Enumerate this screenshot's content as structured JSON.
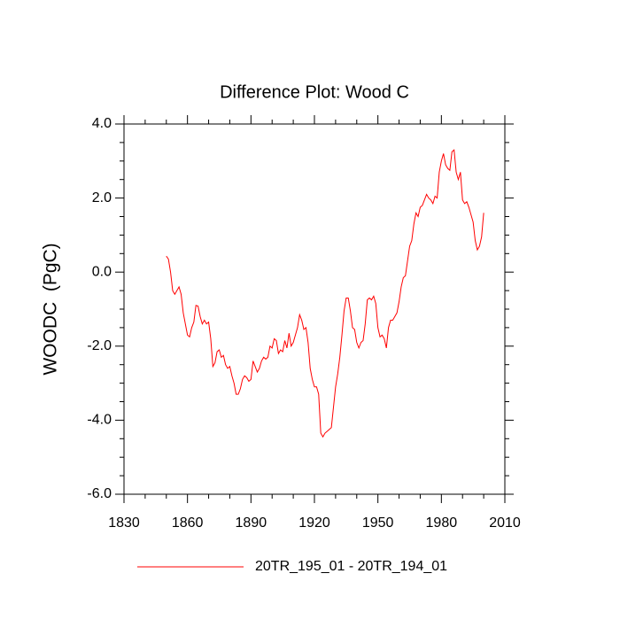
{
  "chart_data": {
    "type": "line",
    "title": "Difference Plot: Wood C",
    "y_label": "WOODC  (PgC)",
    "x": [
      1850,
      1851,
      1852,
      1853,
      1854,
      1855,
      1856,
      1857,
      1858,
      1859,
      1860,
      1861,
      1862,
      1863,
      1864,
      1865,
      1866,
      1867,
      1868,
      1869,
      1870,
      1871,
      1872,
      1873,
      1874,
      1875,
      1876,
      1877,
      1878,
      1879,
      1880,
      1881,
      1882,
      1883,
      1884,
      1885,
      1886,
      1887,
      1888,
      1889,
      1890,
      1891,
      1892,
      1893,
      1894,
      1895,
      1896,
      1897,
      1898,
      1899,
      1900,
      1901,
      1902,
      1903,
      1904,
      1905,
      1906,
      1907,
      1908,
      1909,
      1910,
      1911,
      1912,
      1913,
      1914,
      1915,
      1916,
      1917,
      1918,
      1919,
      1920,
      1921,
      1922,
      1923,
      1924,
      1925,
      1926,
      1927,
      1928,
      1929,
      1930,
      1931,
      1932,
      1933,
      1934,
      1935,
      1936,
      1937,
      1938,
      1939,
      1940,
      1941,
      1942,
      1943,
      1944,
      1945,
      1946,
      1947,
      1948,
      1949,
      1950,
      1951,
      1952,
      1953,
      1954,
      1955,
      1956,
      1957,
      1958,
      1959,
      1960,
      1961,
      1962,
      1963,
      1964,
      1965,
      1966,
      1967,
      1968,
      1969,
      1970,
      1971,
      1972,
      1973,
      1974,
      1975,
      1976,
      1977,
      1978,
      1979,
      1980,
      1981,
      1982,
      1983,
      1984,
      1985,
      1986,
      1987,
      1988,
      1989,
      1990,
      1991,
      1992,
      1993,
      1994,
      1995,
      1996,
      1997,
      1998,
      1999,
      2000
    ],
    "series": [
      {
        "name": "20TR_195_01 - 20TR_194_01",
        "color": "#ff0000",
        "values": [
          0.43,
          0.35,
          0.0,
          -0.5,
          -0.6,
          -0.5,
          -0.4,
          -0.6,
          -1.1,
          -1.4,
          -1.7,
          -1.75,
          -1.5,
          -1.35,
          -0.9,
          -0.92,
          -1.2,
          -1.4,
          -1.3,
          -1.4,
          -1.35,
          -1.8,
          -2.55,
          -2.45,
          -2.15,
          -2.1,
          -2.3,
          -2.25,
          -2.5,
          -2.6,
          -2.55,
          -2.8,
          -3.0,
          -3.3,
          -3.3,
          -3.15,
          -2.9,
          -2.8,
          -2.85,
          -2.95,
          -2.9,
          -2.4,
          -2.55,
          -2.7,
          -2.6,
          -2.4,
          -2.3,
          -2.35,
          -2.3,
          -2.0,
          -2.05,
          -1.8,
          -1.85,
          -2.2,
          -2.1,
          -2.15,
          -1.85,
          -2.05,
          -1.65,
          -2.0,
          -1.9,
          -1.7,
          -1.5,
          -1.15,
          -1.3,
          -1.55,
          -1.5,
          -1.9,
          -2.6,
          -2.9,
          -3.1,
          -3.1,
          -3.3,
          -4.35,
          -4.45,
          -4.35,
          -4.3,
          -4.25,
          -4.2,
          -3.65,
          -3.1,
          -2.75,
          -2.3,
          -1.7,
          -1.05,
          -0.7,
          -0.7,
          -1.05,
          -1.5,
          -1.55,
          -1.9,
          -2.05,
          -1.9,
          -1.85,
          -1.4,
          -0.75,
          -0.7,
          -0.75,
          -0.65,
          -0.85,
          -1.5,
          -1.75,
          -1.7,
          -1.8,
          -2.05,
          -1.5,
          -1.3,
          -1.3,
          -1.2,
          -1.1,
          -0.8,
          -0.4,
          -0.15,
          -0.1,
          0.3,
          0.7,
          0.85,
          1.3,
          1.6,
          1.5,
          1.75,
          1.8,
          1.95,
          2.1,
          2.0,
          1.95,
          1.85,
          2.05,
          2.0,
          2.7,
          3.0,
          3.2,
          2.9,
          2.8,
          2.75,
          3.25,
          3.3,
          2.7,
          2.5,
          2.7,
          1.95,
          1.85,
          1.9,
          1.75,
          1.55,
          1.35,
          0.85,
          0.6,
          0.7,
          0.95,
          1.6
        ]
      }
    ],
    "xlim": [
      1830,
      2010
    ],
    "xticks": [
      1830,
      1860,
      1890,
      1920,
      1950,
      1980,
      2010
    ],
    "xminorticks": [
      1840,
      1850,
      1870,
      1880,
      1900,
      1910,
      1930,
      1940,
      1960,
      1970,
      1990,
      2000
    ],
    "ylim": [
      -6,
      4
    ],
    "yticks": [
      {
        "value": -6,
        "label": "-6.0"
      },
      {
        "value": -4,
        "label": "-4.0"
      },
      {
        "value": -2,
        "label": "-2.0"
      },
      {
        "value": 0,
        "label": "0.0"
      },
      {
        "value": 2,
        "label": "2.0"
      },
      {
        "value": 4,
        "label": "4.0"
      }
    ],
    "yminorticks": [
      -5.5,
      -5,
      -4.5,
      -3.5,
      -3,
      -2.5,
      -1.5,
      -1,
      -0.5,
      0.5,
      1,
      1.5,
      2.5,
      3,
      3.5
    ],
    "legend": "bottom"
  }
}
